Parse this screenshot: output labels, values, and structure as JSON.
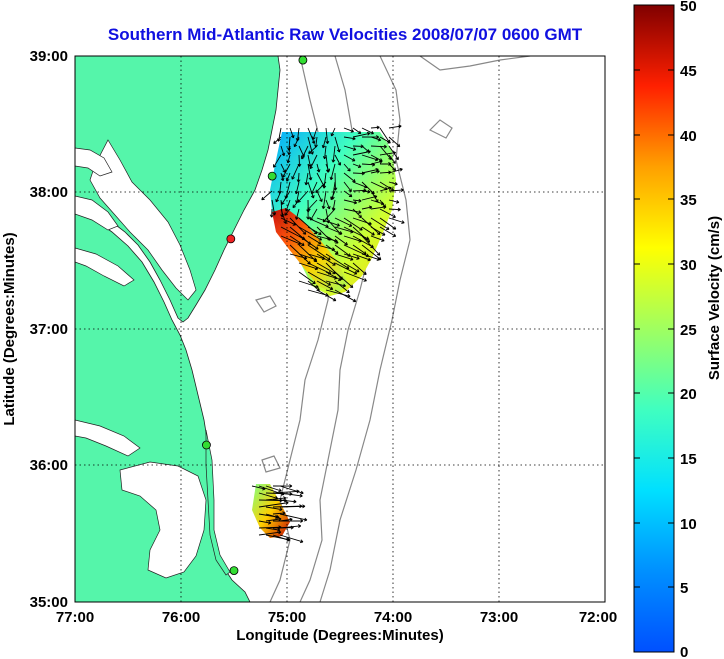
{
  "title": "Southern Mid-Atlantic Raw Velocities 2008/07/07 0600 GMT",
  "map": {
    "x_label": "Longitude (Degrees:Minutes)",
    "y_label": "Latitude (Degrees:Minutes)",
    "x_ticks": [
      "77:00",
      "76:00",
      "75:00",
      "74:00",
      "73:00",
      "72:00"
    ],
    "y_ticks": [
      "39:00",
      "38:00",
      "37:00",
      "36:00",
      "35:00"
    ],
    "lon_range": [
      77,
      72
    ],
    "lat_range": [
      35,
      39
    ],
    "land_color": "#55f5aa",
    "grid": "dotted"
  },
  "colorbar": {
    "label": "Surface Velocity (cm/s)",
    "min": 0,
    "max": 50,
    "ticks": [
      "50",
      "45",
      "40",
      "35",
      "30",
      "25",
      "20",
      "15",
      "10",
      "5",
      "0"
    ],
    "colormap": "jet"
  },
  "stations": [
    {
      "lat": 38.97,
      "lon": 74.85,
      "color": "#33dd33"
    },
    {
      "lat": 38.12,
      "lon": 75.14,
      "color": "#33dd33"
    },
    {
      "lat": 37.66,
      "lon": 75.53,
      "color": "#ee2222"
    },
    {
      "lat": 36.15,
      "lon": 75.76,
      "color": "#33dd33"
    },
    {
      "lat": 35.23,
      "lon": 75.5,
      "color": "#33dd33"
    }
  ]
}
